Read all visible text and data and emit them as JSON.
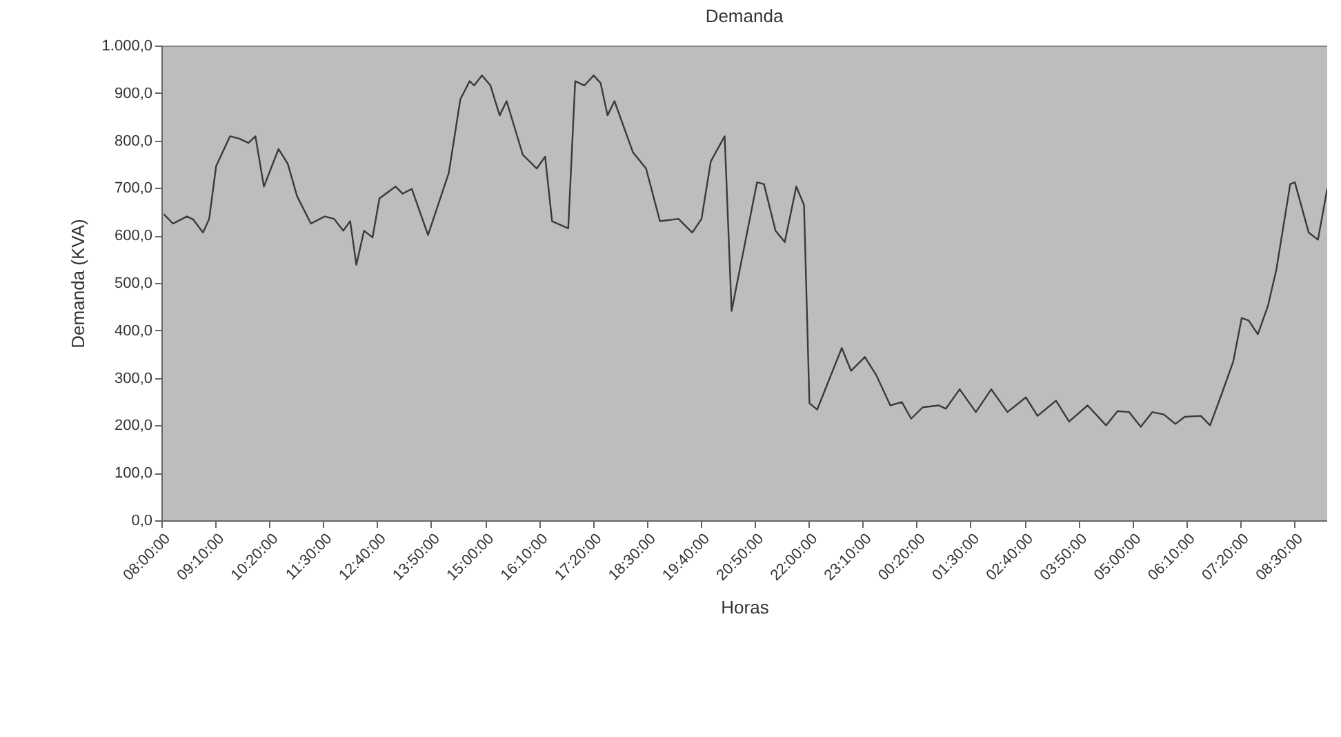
{
  "chart_data": {
    "type": "line",
    "title": "Demanda",
    "xlabel": "Horas",
    "ylabel": "Demanda (KVA)",
    "x": [
      "2000-01-01T08:03",
      "2000-01-01T08:15",
      "2000-01-01T08:33",
      "2000-01-01T08:41",
      "2000-01-01T08:54",
      "2000-01-01T09:02",
      "2000-01-01T09:11",
      "2000-01-01T09:29",
      "2000-01-01T09:41",
      "2000-01-01T09:53",
      "2000-01-01T10:02",
      "2000-01-01T10:13",
      "2000-01-01T10:32",
      "2000-01-01T10:44",
      "2000-01-01T10:56",
      "2000-01-01T11:14",
      "2000-01-01T11:32",
      "2000-01-01T11:44",
      "2000-01-01T11:56",
      "2000-01-01T12:05",
      "2000-01-01T12:13",
      "2000-01-01T12:23",
      "2000-01-01T12:34",
      "2000-01-01T12:43",
      "2000-01-01T13:04",
      "2000-01-01T13:13",
      "2000-01-01T13:25",
      "2000-01-01T13:46",
      "2000-01-01T14:13",
      "2000-01-01T14:28",
      "2000-01-01T14:40",
      "2000-01-01T14:46",
      "2000-01-01T14:56",
      "2000-01-01T15:07",
      "2000-01-01T15:19",
      "2000-01-01T15:28",
      "2000-01-01T15:49",
      "2000-01-01T16:07",
      "2000-01-01T16:18",
      "2000-01-01T16:27",
      "2000-01-01T16:48",
      "2000-01-01T16:57",
      "2000-01-01T17:09",
      "2000-01-01T17:21",
      "2000-01-01T17:30",
      "2000-01-01T17:39",
      "2000-01-01T17:48",
      "2000-01-01T18:12",
      "2000-01-01T18:29",
      "2000-01-01T18:47",
      "2000-01-01T19:11",
      "2000-01-01T19:29",
      "2000-01-01T19:41",
      "2000-01-01T19:53",
      "2000-01-01T20:11",
      "2000-01-01T20:20",
      "2000-01-01T20:53",
      "2000-01-01T21:02",
      "2000-01-01T21:17",
      "2000-01-01T21:29",
      "2000-01-01T21:44",
      "2000-01-01T21:54",
      "2000-01-01T22:01",
      "2000-01-01T22:11",
      "2000-01-01T22:43",
      "2000-01-01T22:55",
      "2000-01-01T23:13",
      "2000-01-01T23:28",
      "2000-01-01T23:46",
      "2000-01-02T00:01",
      "2000-01-02T00:13",
      "2000-01-02T00:28",
      "2000-01-02T00:49",
      "2000-01-02T00:58",
      "2000-01-02T01:16",
      "2000-01-02T01:37",
      "2000-01-02T01:57",
      "2000-01-02T02:18",
      "2000-01-02T02:42",
      "2000-01-02T02:57",
      "2000-01-02T03:21",
      "2000-01-02T03:38",
      "2000-01-02T04:02",
      "2000-01-02T04:26",
      "2000-01-02T04:41",
      "2000-01-02T04:56",
      "2000-01-02T05:11",
      "2000-01-02T05:26",
      "2000-01-02T05:41",
      "2000-01-02T05:56",
      "2000-01-02T06:08",
      "2000-01-02T06:29",
      "2000-01-02T06:41",
      "2000-01-02T06:56",
      "2000-01-02T07:11",
      "2000-01-02T07:22",
      "2000-01-02T07:31",
      "2000-01-02T07:43",
      "2000-01-02T07:56",
      "2000-01-02T08:07",
      "2000-01-02T08:25",
      "2000-01-02T08:31",
      "2000-01-02T08:49",
      "2000-01-02T09:01",
      "2000-01-02T09:13"
    ],
    "series": [
      {
        "color": "#3a3a3a",
        "values": [
          645,
          625,
          640,
          634,
          606,
          635,
          746,
          809,
          804,
          795,
          809,
          703,
          782,
          751,
          683,
          625,
          640,
          635,
          610,
          630,
          538,
          610,
          596,
          678,
          703,
          688,
          698,
          601,
          732,
          887,
          925,
          916,
          937,
          916,
          853,
          883,
          770,
          741,
          766,
          630,
          615,
          925,
          916,
          937,
          921,
          853,
          883,
          775,
          741,
          630,
          635,
          606,
          635,
          756,
          809,
          441,
          712,
          708,
          610,
          586,
          703,
          664,
          247,
          233,
          363,
          315,
          344,
          305,
          242,
          249,
          214,
          238,
          242,
          235,
          276,
          228,
          276,
          228,
          259,
          220,
          252,
          208,
          242,
          200,
          230,
          228,
          197,
          228,
          223,
          203,
          218,
          220,
          200,
          266,
          334,
          426,
          421,
          392,
          451,
          528,
          708,
          712,
          606,
          591,
          698
        ]
      }
    ],
    "xlim": [
      "2000-01-01T08:00",
      "2000-01-02T09:13"
    ],
    "xticks": [
      {
        "value": "2000-01-01T08:00",
        "label": "08:00:00"
      },
      {
        "value": "2000-01-01T09:10",
        "label": "09:10:00"
      },
      {
        "value": "2000-01-01T10:20",
        "label": "10:20:00"
      },
      {
        "value": "2000-01-01T11:30",
        "label": "11:30:00"
      },
      {
        "value": "2000-01-01T12:40",
        "label": "12:40:00"
      },
      {
        "value": "2000-01-01T13:50",
        "label": "13:50:00"
      },
      {
        "value": "2000-01-01T15:00",
        "label": "15:00:00"
      },
      {
        "value": "2000-01-01T16:10",
        "label": "16:10:00"
      },
      {
        "value": "2000-01-01T17:20",
        "label": "17:20:00"
      },
      {
        "value": "2000-01-01T18:30",
        "label": "18:30:00"
      },
      {
        "value": "2000-01-01T19:40",
        "label": "19:40:00"
      },
      {
        "value": "2000-01-01T20:50",
        "label": "20:50:00"
      },
      {
        "value": "2000-01-01T22:00",
        "label": "22:00:00"
      },
      {
        "value": "2000-01-01T23:10",
        "label": "23:10:00"
      },
      {
        "value": "2000-01-02T00:20",
        "label": "00:20:00"
      },
      {
        "value": "2000-01-02T01:30",
        "label": "01:30:00"
      },
      {
        "value": "2000-01-02T02:40",
        "label": "02:40:00"
      },
      {
        "value": "2000-01-02T03:50",
        "label": "03:50:00"
      },
      {
        "value": "2000-01-02T05:00",
        "label": "05:00:00"
      },
      {
        "value": "2000-01-02T06:10",
        "label": "06:10:00"
      },
      {
        "value": "2000-01-02T07:20",
        "label": "07:20:00"
      },
      {
        "value": "2000-01-02T08:30",
        "label": "08:30:00"
      }
    ],
    "ylim": [
      0,
      1000
    ],
    "yticks": [
      {
        "value": 0,
        "label": "0,0"
      },
      {
        "value": 100,
        "label": "100,0"
      },
      {
        "value": 200,
        "label": "200,0"
      },
      {
        "value": 300,
        "label": "300,0"
      },
      {
        "value": 400,
        "label": "400,0"
      },
      {
        "value": 500,
        "label": "500,0"
      },
      {
        "value": 600,
        "label": "600,0"
      },
      {
        "value": 700,
        "label": "700,0"
      },
      {
        "value": 800,
        "label": "800,0"
      },
      {
        "value": 900,
        "label": "900,0"
      },
      {
        "value": 1000,
        "label": "1.000,0"
      }
    ],
    "line_style": "solid"
  }
}
